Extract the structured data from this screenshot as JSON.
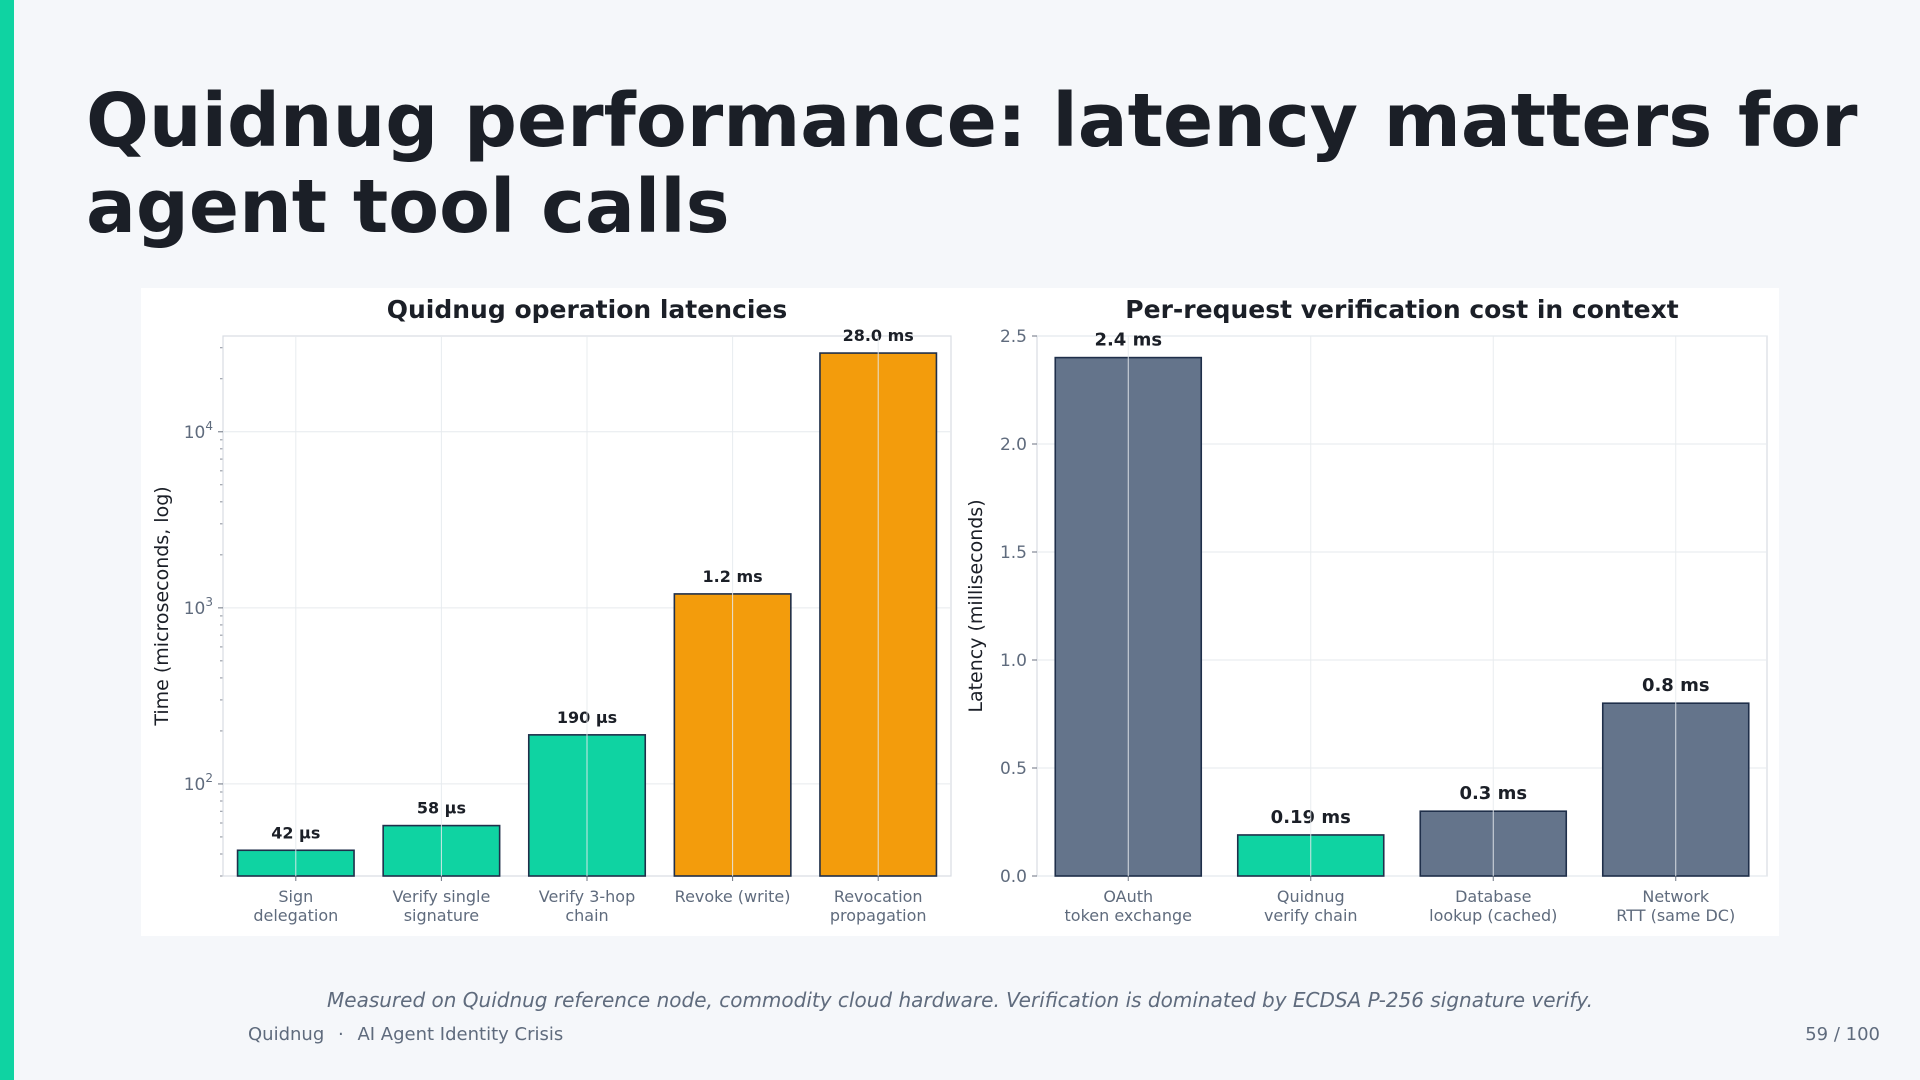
{
  "slide": {
    "title": "Quidnug performance: latency matters for agent tool calls",
    "caption": "Measured on Quidnug reference node, commodity cloud hardware. Verification is dominated by ECDSA P-256 signature verify.",
    "footer_brand": "Quidnug",
    "footer_separator": "·",
    "footer_deck": "AI Agent Identity Crisis",
    "page_number": "59 / 100",
    "accent_color": "#0fd3a2"
  },
  "chart_data": [
    {
      "type": "bar",
      "title": "Quidnug operation latencies",
      "xlabel": "",
      "ylabel": "Time (microseconds, log)",
      "yscale": "log",
      "ylim": [
        30,
        35000
      ],
      "y_ticks": [
        {
          "value": 100,
          "base": "10",
          "exp": "2"
        },
        {
          "value": 1000,
          "base": "10",
          "exp": "3"
        },
        {
          "value": 10000,
          "base": "10",
          "exp": "4"
        }
      ],
      "grid": true,
      "categories": [
        [
          "Sign",
          "delegation"
        ],
        [
          "Verify single",
          "signature"
        ],
        [
          "Verify 3-hop",
          "chain"
        ],
        [
          "Revoke (write)"
        ],
        [
          "Revocation",
          "propagation"
        ]
      ],
      "values": [
        42,
        58,
        190,
        1200,
        28000
      ],
      "data_labels": [
        "42 µs",
        "58 µs",
        "190 µs",
        "1.2 ms",
        "28.0 ms"
      ],
      "colors": [
        "#0fd3a2",
        "#0fd3a2",
        "#0fd3a2",
        "#f39c0c",
        "#f39c0c"
      ]
    },
    {
      "type": "bar",
      "title": "Per-request verification cost in context",
      "xlabel": "",
      "ylabel": "Latency (milliseconds)",
      "ylim": [
        0,
        2.5
      ],
      "y_ticks": [
        "0.0",
        "0.5",
        "1.0",
        "1.5",
        "2.0",
        "2.5"
      ],
      "grid": true,
      "categories": [
        [
          "OAuth",
          "token exchange"
        ],
        [
          "Quidnug",
          "verify chain"
        ],
        [
          "Database",
          "lookup (cached)"
        ],
        [
          "Network",
          "RTT (same DC)"
        ]
      ],
      "values": [
        2.4,
        0.19,
        0.3,
        0.8
      ],
      "data_labels": [
        "2.4 ms",
        "0.19 ms",
        "0.3 ms",
        "0.8 ms"
      ],
      "colors": [
        "#64748b",
        "#0fd3a2",
        "#64748b",
        "#64748b"
      ]
    }
  ]
}
